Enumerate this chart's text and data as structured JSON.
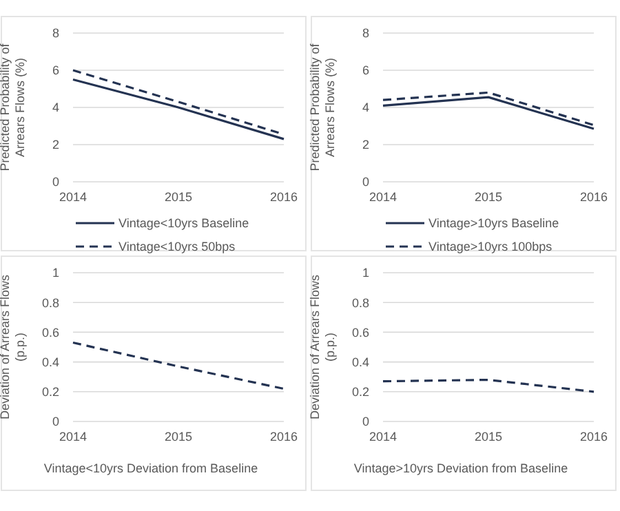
{
  "chart_data": [
    {
      "type": "line",
      "ylabel": "Predicted Probability of Arrears Flows (%)",
      "categories": [
        "2014",
        "2015",
        "2016"
      ],
      "ylim": [
        0,
        8
      ],
      "yticks": [
        0,
        2,
        4,
        6,
        8
      ],
      "grid": "y",
      "legend": "bottom",
      "series": [
        {
          "name": "Vintage<10yrs Baseline",
          "color": "#243352",
          "values": [
            5.5,
            4.0,
            2.3
          ],
          "line_style": "solid"
        },
        {
          "name": "Vintage<10yrs 50bps",
          "color": "#243352",
          "values": [
            6.0,
            4.3,
            2.55
          ],
          "line_style": "dashed"
        }
      ]
    },
    {
      "type": "line",
      "ylabel": "Predicted Probability of Arrears Flows (%)",
      "categories": [
        "2014",
        "2015",
        "2016"
      ],
      "ylim": [
        0,
        8
      ],
      "yticks": [
        0,
        2,
        4,
        6,
        8
      ],
      "grid": "y",
      "legend": "bottom",
      "series": [
        {
          "name": "Vintage>10yrs Baseline",
          "color": "#243352",
          "values": [
            4.1,
            4.55,
            2.85
          ],
          "line_style": "solid"
        },
        {
          "name": "Vintage>10yrs 100bps",
          "color": "#243352",
          "values": [
            4.4,
            4.8,
            3.05
          ],
          "line_style": "dashed"
        }
      ]
    },
    {
      "type": "line",
      "ylabel": "Deviation of Arrears Flows (p.p.)",
      "xlabel": "Vintage<10yrs Deviation from Baseline",
      "categories": [
        "2014",
        "2015",
        "2016"
      ],
      "ylim": [
        0,
        1
      ],
      "yticks": [
        0,
        0.2,
        0.4,
        0.6,
        0.8,
        1
      ],
      "grid": "y",
      "series": [
        {
          "color": "#243352",
          "values": [
            0.53,
            0.37,
            0.22
          ],
          "line_style": "dashed"
        }
      ]
    },
    {
      "type": "line",
      "ylabel": "Deviation of Arrears Flows (p.p.)",
      "xlabel": "Vintage>10yrs Deviation from Baseline",
      "categories": [
        "2014",
        "2015",
        "2016"
      ],
      "ylim": [
        0,
        1
      ],
      "yticks": [
        0,
        0.2,
        0.4,
        0.6,
        0.8,
        1
      ],
      "grid": "y",
      "series": [
        {
          "color": "#243352",
          "values": [
            0.27,
            0.28,
            0.2
          ],
          "line_style": "dashed"
        }
      ]
    }
  ]
}
